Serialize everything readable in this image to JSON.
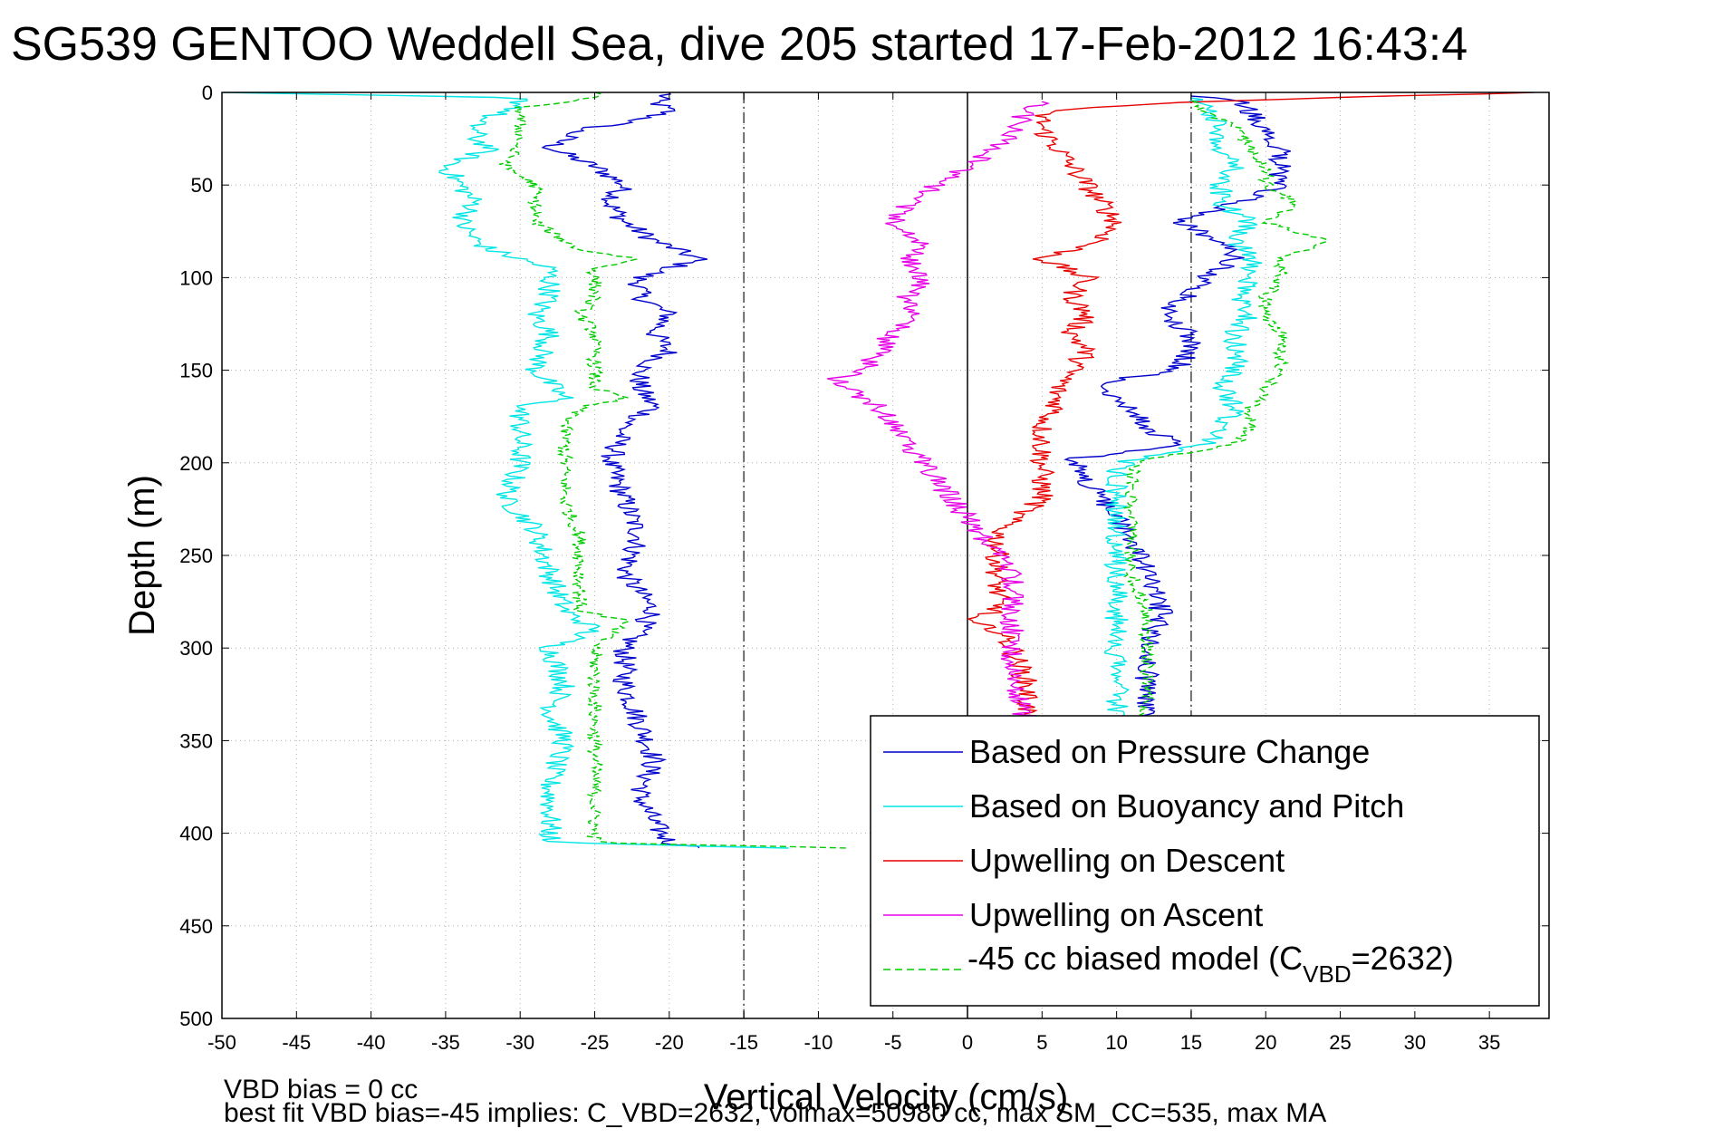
{
  "chart_data": {
    "type": "line",
    "title": "SG539 GENTOO Weddell Sea, dive 205 started 17-Feb-2012 16:43:4",
    "xlabel": "Vertical Velocity (cm/s)",
    "ylabel": "Depth (m)",
    "xlim": [
      -50,
      39
    ],
    "ylim": [
      0,
      500
    ],
    "y_reversed": true,
    "grid": true,
    "legend_position": "lower-right",
    "x_ticks": [
      -50,
      -45,
      -40,
      -35,
      -30,
      -25,
      -20,
      -15,
      -10,
      -5,
      0,
      5,
      10,
      15,
      20,
      25,
      30,
      35
    ],
    "y_ticks": [
      0,
      50,
      100,
      150,
      200,
      250,
      300,
      350,
      400,
      450,
      500
    ],
    "vertical_reference_lines": [
      {
        "x": -15,
        "style": "dash-dot"
      },
      {
        "x": 0,
        "style": "solid"
      },
      {
        "x": 15,
        "style": "dash-dot"
      }
    ],
    "series": [
      {
        "name": "Based on Pressure Change",
        "color": "#0000cc",
        "dash": "solid",
        "descent": {
          "depth": [
            0,
            5,
            10,
            15,
            20,
            30,
            40,
            50,
            60,
            70,
            80,
            90,
            100,
            110,
            120,
            130,
            140,
            150,
            160,
            170,
            180,
            200,
            220,
            240,
            260,
            280,
            300,
            320,
            340,
            360,
            380,
            395,
            405,
            408
          ],
          "v": [
            -20,
            -21,
            -20,
            -22,
            -26,
            -28,
            -25,
            -23,
            -24,
            -23,
            -21,
            -18,
            -22,
            -22,
            -20,
            -21,
            -20,
            -22,
            -22,
            -21,
            -23,
            -24,
            -23,
            -22,
            -23,
            -21,
            -23,
            -23,
            -22,
            -21,
            -22,
            -21,
            -20,
            -18
          ]
        },
        "ascent": {
          "depth": [
            408,
            395,
            380,
            360,
            340,
            320,
            300,
            280,
            260,
            240,
            230,
            210,
            198,
            190,
            180,
            170,
            160,
            155,
            150,
            140,
            130,
            120,
            110,
            100,
            90,
            80,
            70,
            60,
            50,
            40,
            30,
            20,
            10,
            5,
            2
          ],
          "v": [
            13,
            13,
            13,
            12,
            12,
            12,
            12,
            13,
            12,
            11,
            10,
            8,
            7,
            14,
            12,
            11,
            9,
            10,
            14,
            15,
            15,
            13,
            15,
            16,
            18,
            17,
            14,
            18,
            21,
            21,
            21,
            20,
            19,
            18,
            15
          ]
        }
      },
      {
        "name": "Based on Buoyancy and Pitch",
        "color": "#00e5e5",
        "dash": "solid",
        "descent": {
          "depth": [
            0,
            3,
            8,
            15,
            25,
            30,
            40,
            50,
            60,
            70,
            80,
            85,
            95,
            110,
            120,
            130,
            150,
            165,
            170,
            180,
            200,
            220,
            235,
            260,
            280,
            290,
            300,
            320,
            335,
            350,
            370,
            390,
            405,
            408
          ],
          "v": [
            -50,
            -30,
            -30,
            -33,
            -33,
            -32,
            -35,
            -34,
            -33,
            -34,
            -33,
            -32,
            -28,
            -28,
            -29,
            -28,
            -29,
            -27,
            -30,
            -30,
            -30,
            -31,
            -29,
            -28,
            -27,
            -25,
            -28,
            -27,
            -28,
            -27,
            -28,
            -28,
            -28,
            -12
          ]
        },
        "ascent": {
          "depth": [
            408,
            395,
            380,
            360,
            340,
            320,
            300,
            280,
            260,
            240,
            220,
            205,
            198,
            190,
            180,
            170,
            160,
            150,
            140,
            130,
            120,
            110,
            100,
            90,
            80,
            70,
            60,
            50,
            40,
            30,
            20,
            10,
            3
          ],
          "v": [
            10,
            10,
            10,
            10,
            10,
            10,
            10,
            10,
            10,
            10,
            10,
            10,
            11,
            16,
            17,
            18,
            17,
            18,
            18,
            18,
            19,
            18,
            19,
            19,
            18,
            19,
            17,
            17,
            18,
            17,
            17,
            16,
            15
          ]
        }
      },
      {
        "name": "Upwelling on Descent",
        "color": "#e60000",
        "dash": "solid",
        "descent": {
          "depth": [
            0,
            5,
            10,
            20,
            30,
            40,
            50,
            60,
            70,
            80,
            90,
            100,
            110,
            120,
            130,
            140,
            150,
            160,
            170,
            180,
            190,
            200,
            210,
            220,
            230,
            240,
            250,
            260,
            270,
            280,
            285,
            290,
            300,
            320,
            340,
            350
          ],
          "v": [
            38,
            15,
            5,
            5,
            6,
            7,
            8,
            9,
            10,
            9,
            5,
            8,
            7,
            8,
            7,
            8,
            7,
            6,
            6,
            5,
            5,
            5,
            5,
            5,
            3,
            2,
            2,
            2,
            2,
            2,
            -0.5,
            2,
            3,
            4,
            4,
            5
          ]
        }
      },
      {
        "name": "Upwelling on Ascent",
        "color": "#e600e6",
        "dash": "solid",
        "ascent": {
          "depth": [
            350,
            340,
            320,
            300,
            280,
            260,
            250,
            240,
            230,
            220,
            210,
            200,
            190,
            180,
            170,
            160,
            155,
            150,
            140,
            130,
            120,
            110,
            100,
            90,
            80,
            70,
            60,
            50,
            40,
            30,
            20,
            10,
            5
          ],
          "v": [
            3,
            4,
            3,
            3,
            3,
            3,
            2,
            1,
            0,
            -1,
            -2,
            -3,
            -4,
            -5,
            -6,
            -8,
            -9,
            -7,
            -6,
            -5,
            -4,
            -4,
            -3,
            -4,
            -3,
            -5,
            -4,
            -2,
            0,
            2,
            3,
            4,
            5
          ]
        }
      },
      {
        "name": "-45 cc biased model (C_VBD=2632)",
        "legend_label_main": "-45 cc biased model (C",
        "legend_label_sub": "VBD",
        "legend_label_end": "=2632)",
        "color": "#00cc00",
        "dash": "dashed",
        "descent": {
          "depth": [
            0,
            3,
            8,
            15,
            25,
            40,
            50,
            60,
            70,
            85,
            90,
            95,
            110,
            120,
            130,
            150,
            160,
            165,
            170,
            180,
            200,
            220,
            240,
            260,
            280,
            285,
            300,
            320,
            340,
            360,
            380,
            400,
            405,
            408
          ],
          "v": [
            -25,
            -25,
            -30,
            -30,
            -30,
            -31,
            -29,
            -29,
            -29,
            -26,
            -22,
            -25,
            -25,
            -26,
            -25,
            -25,
            -25,
            -23,
            -26,
            -27,
            -27,
            -27,
            -26,
            -26,
            -26,
            -23,
            -25,
            -25,
            -25,
            -25,
            -25,
            -25,
            -25,
            -8
          ]
        },
        "ascent": {
          "depth": [
            408,
            395,
            380,
            360,
            340,
            320,
            300,
            280,
            260,
            240,
            220,
            205,
            198,
            190,
            180,
            170,
            160,
            150,
            140,
            130,
            120,
            110,
            100,
            90,
            80,
            70,
            60,
            50,
            40,
            30,
            20,
            10,
            3
          ],
          "v": [
            12,
            12,
            12,
            12,
            12,
            12,
            12,
            12,
            11,
            11,
            11,
            11,
            12,
            18,
            19,
            19,
            20,
            21,
            21,
            21,
            20,
            20,
            21,
            21,
            24,
            20,
            22,
            20,
            20,
            19,
            18,
            16,
            15
          ]
        }
      }
    ],
    "footnote_lines": [
      "VBD bias = 0 cc",
      "best fit VBD bias=-45 implies: C_VBD=2632, volmax=50980 cc, max SM_CC=535, max MA"
    ]
  }
}
